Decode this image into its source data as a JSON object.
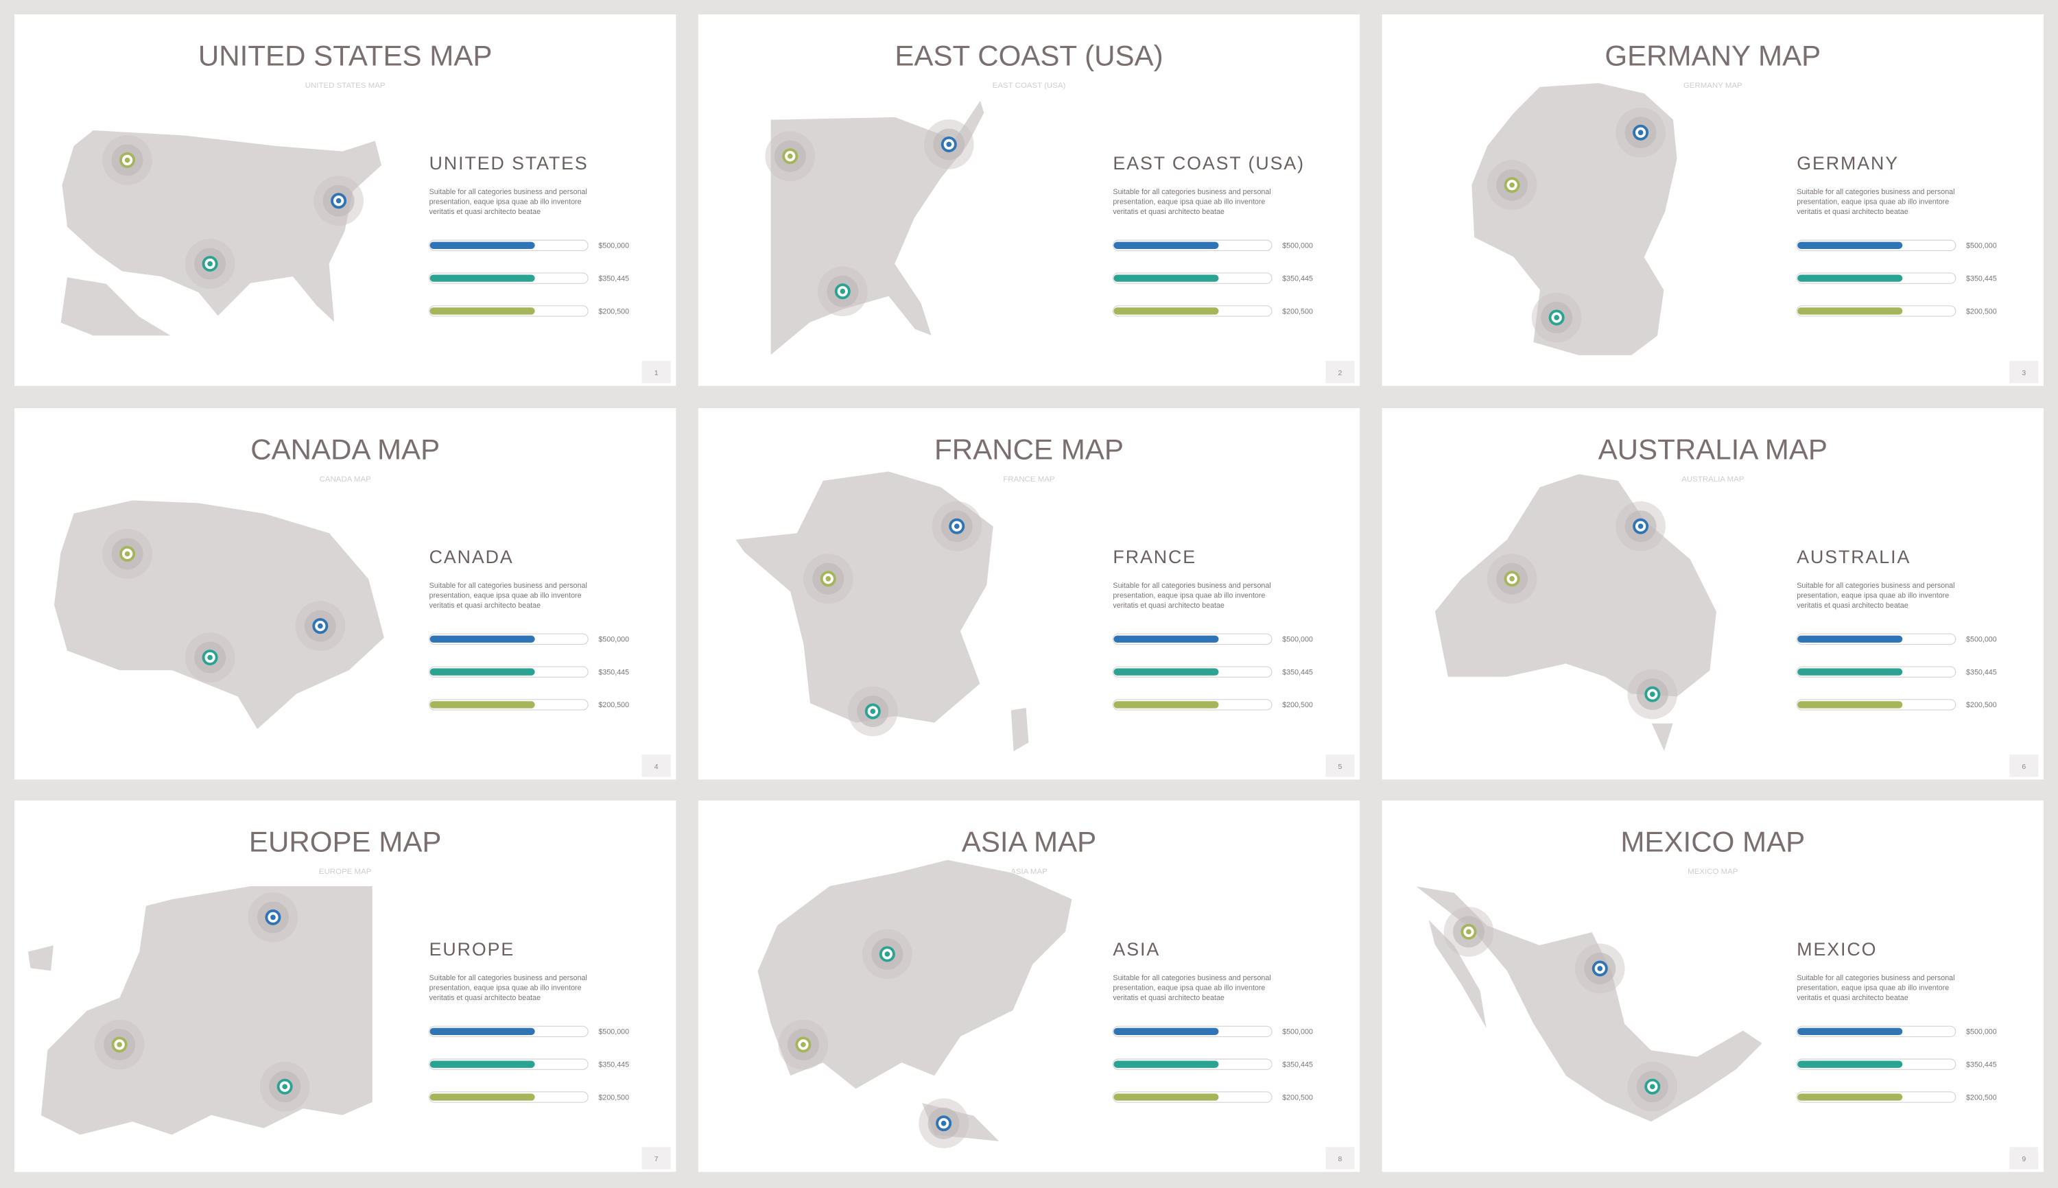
{
  "slides": [
    {
      "title": "UNITED  STATES MAP",
      "subtitle": "UNITED STATES MAP",
      "heading": "UNITED  STATES",
      "description": [
        "Suitable for all categories business and personal",
        "presentation, eaque ipsa quae ab illo inventore",
        "veritatis et quasi architecto beatae"
      ],
      "bars": [
        "$500,000",
        "$350,445",
        "$200,500"
      ],
      "page": 1
    },
    {
      "title": "EAST COAST (USA)",
      "subtitle": "EAST COAST (USA)",
      "heading": "EAST COAST (USA)",
      "description": [
        "Suitable for all categories business and personal",
        "presentation, eaque ipsa quae ab illo inventore",
        "veritatis et quasi architecto beatae"
      ],
      "bars": [
        "$500,000",
        "$350,445",
        "$200,500"
      ],
      "page": 2
    },
    {
      "title": "GERMANY MAP",
      "subtitle": "GERMANY MAP",
      "heading": "GERMANY",
      "description": [
        "Suitable for all categories business and personal",
        "presentation, eaque ipsa quae ab illo inventore",
        "veritatis et quasi architecto beatae"
      ],
      "bars": [
        "$500,000",
        "$350,445",
        "$200,500"
      ],
      "page": 3
    },
    {
      "title": "CANADA MAP",
      "subtitle": "CANADA MAP",
      "heading": "CANADA",
      "description": [
        "Suitable for all categories business and personal",
        "presentation, eaque ipsa quae ab illo inventore",
        "veritatis et quasi architecto beatae"
      ],
      "bars": [
        "$500,000",
        "$350,445",
        "$200,500"
      ],
      "page": 4
    },
    {
      "title": "FRANCE MAP",
      "subtitle": "FRANCE MAP",
      "heading": "FRANCE",
      "description": [
        "Suitable for all categories business and personal",
        "presentation, eaque ipsa quae ab illo inventore",
        "veritatis et quasi architecto beatae"
      ],
      "bars": [
        "$500,000",
        "$350,445",
        "$200,500"
      ],
      "page": 5
    },
    {
      "title": "AUSTRALIA MAP",
      "subtitle": "AUSTRALIA MAP",
      "heading": "AUSTRALIA",
      "description": [
        "Suitable for all categories business and personal",
        "presentation, eaque ipsa quae ab illo inventore",
        "veritatis et quasi architecto beatae"
      ],
      "bars": [
        "$500,000",
        "$350,445",
        "$200,500"
      ],
      "page": 6
    },
    {
      "title": "EUROPE MAP",
      "subtitle": "EUROPE MAP",
      "heading": "EUROPE",
      "description": [
        "Suitable for all categories business and personal",
        "presentation, eaque ipsa quae ab illo inventore",
        "veritatis et quasi architecto beatae"
      ],
      "bars": [
        "$500,000",
        "$350,445",
        "$200,500"
      ],
      "page": 7
    },
    {
      "title": "ASIA MAP",
      "subtitle": "ASIA MAP",
      "heading": "ASIA",
      "description": [
        "Suitable for all categories business and personal",
        "presentation, eaque ipsa quae ab illo inventore",
        "veritatis et quasi architecto beatae"
      ],
      "bars": [
        "$500,000",
        "$350,445",
        "$200,500"
      ],
      "page": 8
    },
    {
      "title": "MEXICO MAP",
      "subtitle": "MEXICO MAP",
      "heading": "MEXICO",
      "description": [
        "Suitable for all categories business and personal",
        "presentation, eaque ipsa quae ab illo inventore",
        "veritatis et quasi architecto beatae"
      ],
      "bars": [
        "$500,000",
        "$350,445",
        "$200,500"
      ],
      "page": 9
    }
  ]
}
